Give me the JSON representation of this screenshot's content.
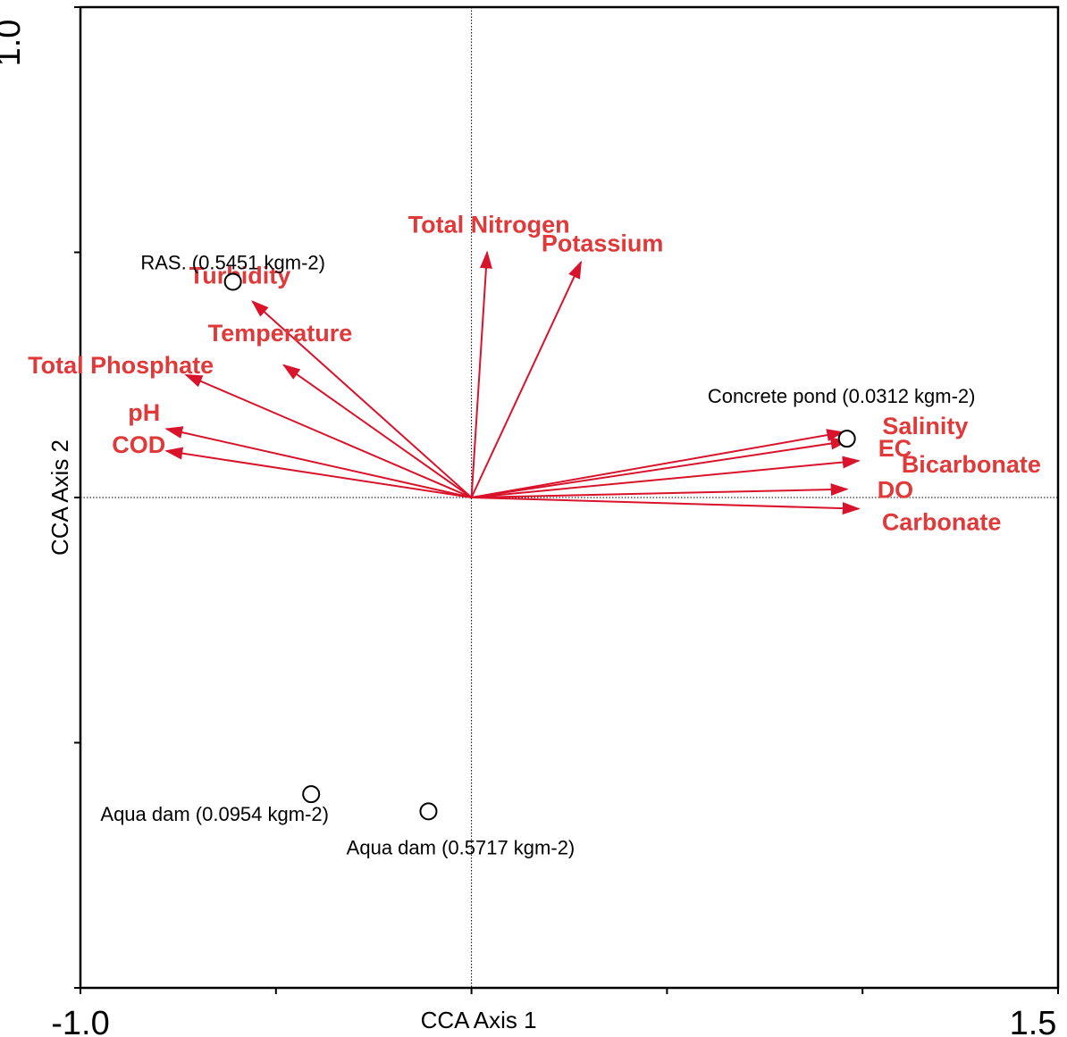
{
  "chart_data": {
    "type": "scatter",
    "subtype": "CCA biplot",
    "title": "",
    "xlabel": "CCA Axis 1",
    "ylabel": "CCA Axis 2",
    "xlim": [
      -1.0,
      1.5
    ],
    "ylim": [
      -1.0,
      1.0
    ],
    "x_tick_labels": [
      "-1.0",
      "1.5"
    ],
    "y_tick_label_top": "1.0",
    "grid": false,
    "zero_lines": true,
    "env_color": "#d9132b",
    "env_label_color": "#e0393a",
    "env_vectors": [
      {
        "name": "Total Nitrogen",
        "x": 0.04,
        "y": 0.5
      },
      {
        "name": "Potassium",
        "x": 0.28,
        "y": 0.48
      },
      {
        "name": "Turbidity",
        "x": -0.56,
        "y": 0.4
      },
      {
        "name": "Temperature",
        "x": -0.48,
        "y": 0.27
      },
      {
        "name": "Total Phosphate",
        "x": -0.73,
        "y": 0.25
      },
      {
        "name": "pH",
        "x": -0.78,
        "y": 0.14
      },
      {
        "name": "COD",
        "x": -0.78,
        "y": 0.095
      },
      {
        "name": "Salinity",
        "x": 0.95,
        "y": 0.133
      },
      {
        "name": "EC",
        "x": 0.96,
        "y": 0.115
      },
      {
        "name": "Bicarbonate",
        "x": 0.99,
        "y": 0.075
      },
      {
        "name": "DO",
        "x": 0.96,
        "y": 0.017
      },
      {
        "name": "Carbonate",
        "x": 0.99,
        "y": -0.023
      }
    ],
    "sites": [
      {
        "name": "RAS. (0.5451 kgm-2)",
        "x": -0.61,
        "y": 0.44
      },
      {
        "name": "Concrete pond (0.0312 kgm-2)",
        "x": 0.96,
        "y": 0.12
      },
      {
        "name": "Aqua dam (0.0954 kgm-2)",
        "x": -0.41,
        "y": -0.605
      },
      {
        "name": "Aqua dam (0.5717 kgm-2)",
        "x": -0.11,
        "y": -0.64
      }
    ]
  }
}
